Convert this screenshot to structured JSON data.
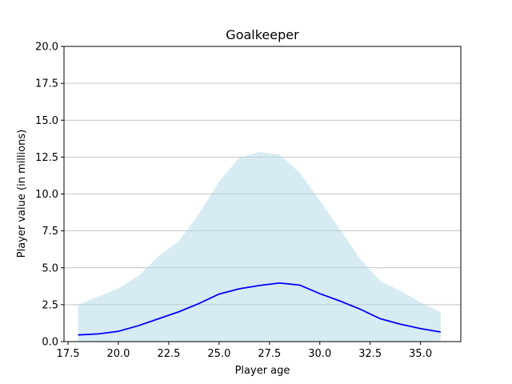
{
  "chart_data": {
    "type": "line",
    "title": "Goalkeeper",
    "xlabel": "Player age",
    "ylabel": "Player value (in millions)",
    "xlim": [
      17.3,
      37.0
    ],
    "ylim": [
      0,
      20
    ],
    "xticks": [
      "17.5",
      "20.0",
      "22.5",
      "25.0",
      "27.5",
      "30.0",
      "32.5",
      "35.0"
    ],
    "yticks": [
      "0.0",
      "2.5",
      "5.0",
      "7.5",
      "10.0",
      "12.5",
      "15.0",
      "17.5",
      "20.0"
    ],
    "grid": "horizontal",
    "x": [
      18,
      19,
      20,
      21,
      22,
      23,
      24,
      25,
      26,
      27,
      28,
      29,
      30,
      31,
      32,
      33,
      34,
      35,
      36
    ],
    "series": [
      {
        "type": "band",
        "color": "#add8e6",
        "upper": [
          2.5,
          3.05,
          3.6,
          4.45,
          5.8,
          6.8,
          8.65,
          10.85,
          12.45,
          12.85,
          12.65,
          11.45,
          9.55,
          7.6,
          5.6,
          4.1,
          3.45,
          2.65,
          2.0
        ],
        "lower": [
          0,
          0,
          0,
          0,
          0,
          0,
          0,
          0,
          0,
          0,
          0,
          0,
          0,
          0,
          0,
          0,
          0,
          0,
          0
        ]
      },
      {
        "type": "line",
        "color": "#0000ff",
        "values": [
          0.45,
          0.52,
          0.7,
          1.08,
          1.55,
          2.02,
          2.58,
          3.22,
          3.58,
          3.8,
          3.97,
          3.83,
          3.25,
          2.75,
          2.2,
          1.55,
          1.18,
          0.88,
          0.65
        ]
      }
    ]
  }
}
